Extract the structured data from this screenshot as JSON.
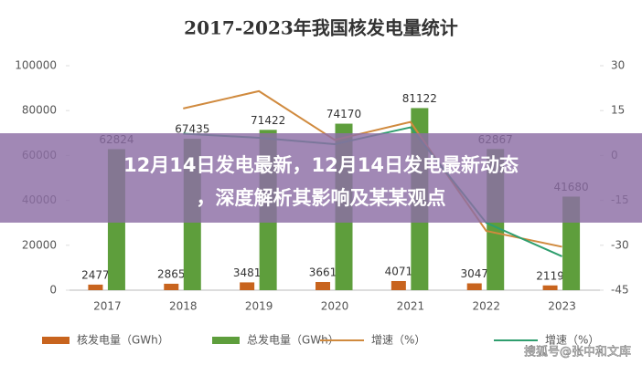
{
  "chart_data": {
    "type": "bar_line",
    "title": "2017-2023年我国核发电量统计",
    "categories": [
      "2017",
      "2018",
      "2019",
      "2020",
      "2021",
      "2022",
      "2023"
    ],
    "series": [
      {
        "name": "核发电量（GWh）",
        "color": "#c8641e",
        "kind": "bar",
        "values": [
          2477,
          2865,
          3481,
          3661,
          4071,
          3047,
          2119
        ]
      },
      {
        "name": "总发电量（GWh）",
        "color": "#5e9e3c",
        "kind": "bar",
        "values": [
          62824,
          67435,
          71422,
          74170,
          81122,
          62867,
          41680
        ]
      },
      {
        "name": "增速（%）",
        "color": "#d08a3e",
        "kind": "line",
        "axis": "y2",
        "values": [
          null,
          15.7,
          21.5,
          5.2,
          11.2,
          -25.2,
          -30.5
        ]
      },
      {
        "name": "增速（%）",
        "color": "#2f9e6e",
        "kind": "line",
        "axis": "y2",
        "values": [
          null,
          7.3,
          5.9,
          3.8,
          9.4,
          -22.5,
          -33.7
        ]
      }
    ],
    "ylim": [
      0,
      100000
    ],
    "yticks": [
      0,
      20000,
      40000,
      60000,
      80000,
      100000
    ],
    "y2lim": [
      -45,
      30
    ],
    "y2ticks": [
      -45,
      -30,
      -15,
      0,
      15,
      30
    ]
  },
  "overlay": {
    "headline_line1": "12月14日发电最新，12月14日发电最新动态",
    "headline_line2": "，深度解析其影响及某某观点"
  },
  "watermark": "搜狐号@张中和文库"
}
